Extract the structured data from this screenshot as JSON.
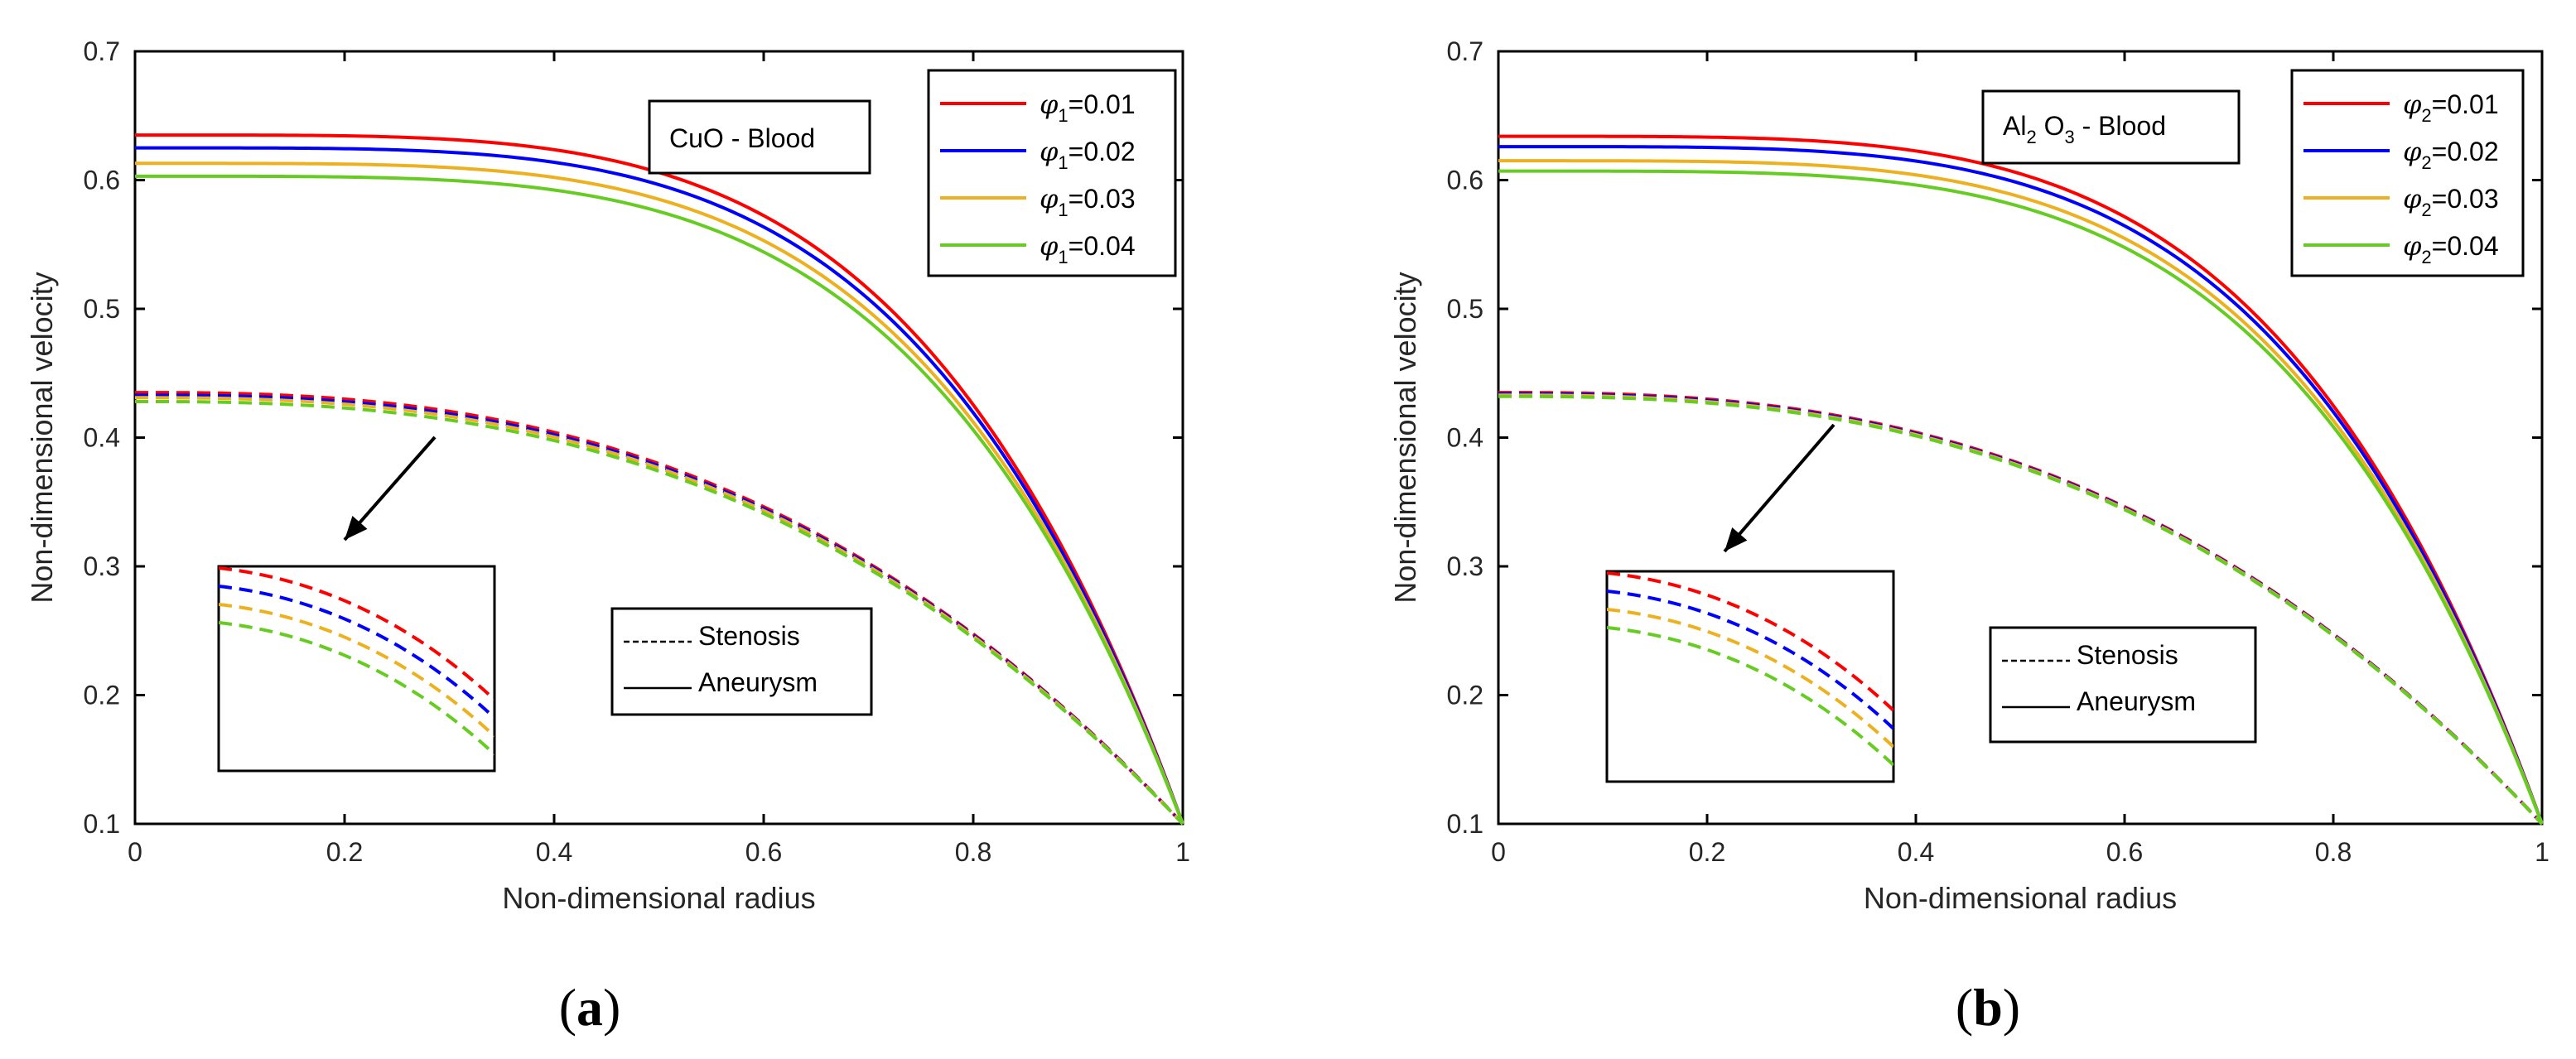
{
  "figure": {
    "captions": [
      "a",
      "b"
    ]
  },
  "chart_data": [
    {
      "type": "line",
      "id": "a",
      "caption": "a",
      "xlabel": "Non-dimensional radius",
      "ylabel": "Non-dimensional velocity",
      "xlim": [
        0,
        1
      ],
      "ylim": [
        0.1,
        0.7
      ],
      "xticks": [
        "0",
        "0.2",
        "0.4",
        "0.6",
        "0.8",
        "1"
      ],
      "yticks": [
        "0.1",
        "0.2",
        "0.3",
        "0.4",
        "0.5",
        "0.6",
        "0.7"
      ],
      "annotation": {
        "main": "CuO",
        "suffix": " - Blood"
      },
      "legend_phi": {
        "symbol": "φ",
        "sub": "1"
      },
      "legend_position": "top-right",
      "series": [
        {
          "name": "=0.01",
          "color": "#ff0000",
          "aneurysm_max": 0.635,
          "stenosis_max": 0.435
        },
        {
          "name": "=0.02",
          "color": "#0000ff",
          "aneurysm_max": 0.625,
          "stenosis_max": 0.433
        },
        {
          "name": "=0.03",
          "color": "#edb120",
          "aneurysm_max": 0.613,
          "stenosis_max": 0.431
        },
        {
          "name": "=0.04",
          "color": "#66cc22",
          "aneurysm_max": 0.603,
          "stenosis_max": 0.428
        }
      ],
      "line_style_legend": [
        {
          "style": "dashed",
          "label": "Stenosis"
        },
        {
          "style": "solid",
          "label": "Aneurysm"
        }
      ]
    },
    {
      "type": "line",
      "id": "b",
      "caption": "b",
      "xlabel": "Non-dimensional radius",
      "ylabel": "Non-dimensional velocity",
      "xlim": [
        0,
        1
      ],
      "ylim": [
        0.1,
        0.7
      ],
      "xticks": [
        "0",
        "0.2",
        "0.4",
        "0.6",
        "0.8",
        "1"
      ],
      "yticks": [
        "0.1",
        "0.2",
        "0.3",
        "0.4",
        "0.5",
        "0.6",
        "0.7"
      ],
      "annotation": {
        "main": "Al",
        "sub": "2",
        "main2": " O",
        "sub2": "3",
        "suffix": " - Blood"
      },
      "legend_phi": {
        "symbol": "φ",
        "sub": "2"
      },
      "legend_position": "top-right",
      "series": [
        {
          "name": "=0.01",
          "color": "#ff0000",
          "aneurysm_max": 0.634,
          "stenosis_max": 0.435
        },
        {
          "name": "=0.02",
          "color": "#0000ff",
          "aneurysm_max": 0.626,
          "stenosis_max": 0.434
        },
        {
          "name": "=0.03",
          "color": "#edb120",
          "aneurysm_max": 0.615,
          "stenosis_max": 0.433
        },
        {
          "name": "=0.04",
          "color": "#66cc22",
          "aneurysm_max": 0.607,
          "stenosis_max": 0.432
        }
      ],
      "line_style_legend": [
        {
          "style": "dashed",
          "label": "Stenosis"
        },
        {
          "style": "solid",
          "label": "Aneurysm"
        }
      ]
    }
  ]
}
